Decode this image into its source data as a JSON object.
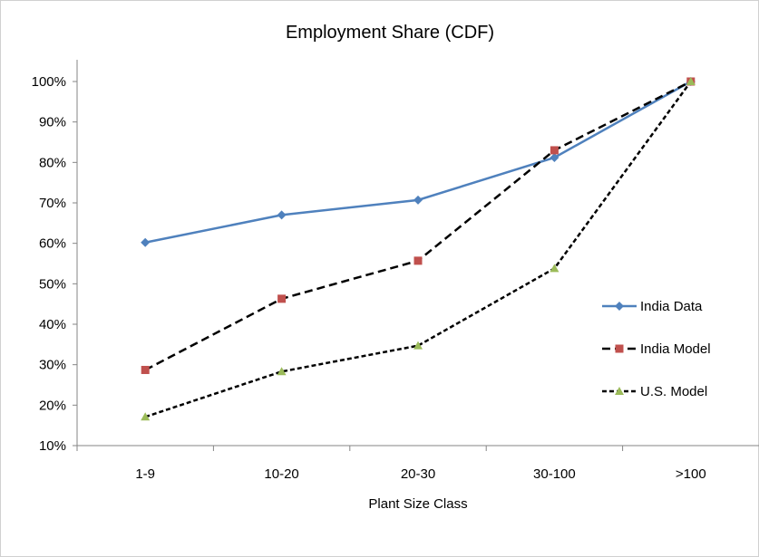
{
  "chart_data": {
    "type": "line",
    "title": "Employment Share (CDF)",
    "xlabel": "Plant Size Class",
    "ylabel": "",
    "categories": [
      "1-9",
      "10-20",
      "20-30",
      "30-100",
      ">100"
    ],
    "ylim": [
      0.1,
      1.0
    ],
    "yticks": [
      "10%",
      "20%",
      "30%",
      "40%",
      "50%",
      "60%",
      "70%",
      "80%",
      "90%",
      "100%"
    ],
    "grid": false,
    "legend_position": "right",
    "series": [
      {
        "name": "India Data",
        "values": [
          0.602,
          0.67,
          0.707,
          0.812,
          1.0
        ],
        "color": "#4f81bd",
        "marker": "diamond",
        "line": "solid"
      },
      {
        "name": "India Model",
        "values": [
          0.287,
          0.463,
          0.557,
          0.83,
          1.0
        ],
        "color": "#c0504d",
        "marker": "square",
        "line": "dashed"
      },
      {
        "name": "U.S. Model",
        "values": [
          0.171,
          0.283,
          0.347,
          0.538,
          1.0
        ],
        "color": "#9bbb59",
        "marker": "triangle",
        "line": "dotted"
      }
    ]
  }
}
